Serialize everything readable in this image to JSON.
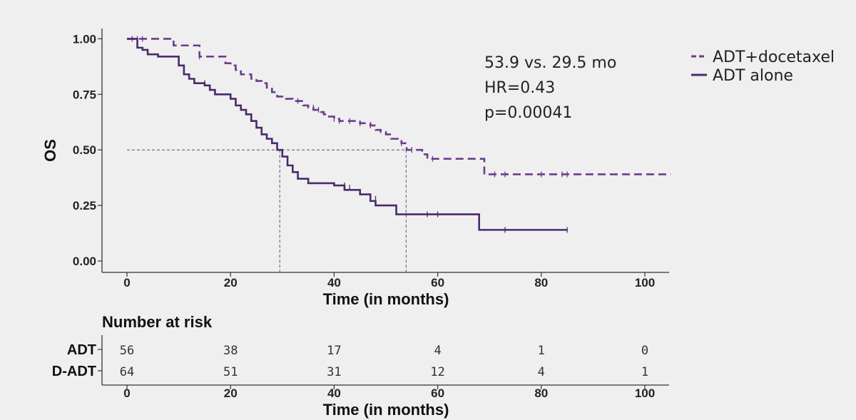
{
  "chart_data": {
    "type": "line",
    "subtype": "kaplan-meier",
    "xlabel": "Time (in months)",
    "ylabel": "OS",
    "xlim": [
      -5,
      105
    ],
    "ylim": [
      0,
      1.0
    ],
    "xticks": [
      0,
      20,
      40,
      60,
      80,
      100
    ],
    "yticks": [
      "0.00",
      "0.25",
      "0.50",
      "0.75",
      "1.00"
    ],
    "grid": false,
    "legend_position": "top-right",
    "annotations": [
      "53.9 vs. 29.5 mo",
      "HR=0.43",
      "p=0.00041"
    ],
    "reference_lines": {
      "y": 0.5,
      "x": [
        29.5,
        53.9
      ]
    },
    "series": [
      {
        "name": "ADT+docetaxel",
        "style": "dashed",
        "color": "#6a3d8f",
        "steps": [
          [
            0,
            1.0
          ],
          [
            9,
            0.97
          ],
          [
            14,
            0.92
          ],
          [
            19,
            0.89
          ],
          [
            20,
            0.88
          ],
          [
            21,
            0.86
          ],
          [
            22,
            0.84
          ],
          [
            24,
            0.82
          ],
          [
            25,
            0.81
          ],
          [
            26,
            0.8
          ],
          [
            27,
            0.78
          ],
          [
            28,
            0.76
          ],
          [
            29,
            0.74
          ],
          [
            30,
            0.73
          ],
          [
            32,
            0.72
          ],
          [
            34,
            0.7
          ],
          [
            35,
            0.69
          ],
          [
            36,
            0.68
          ],
          [
            37,
            0.67
          ],
          [
            38,
            0.66
          ],
          [
            39,
            0.65
          ],
          [
            40,
            0.64
          ],
          [
            41,
            0.63
          ],
          [
            42,
            0.63
          ],
          [
            45,
            0.62
          ],
          [
            47,
            0.61
          ],
          [
            48,
            0.59
          ],
          [
            49,
            0.58
          ],
          [
            50,
            0.57
          ],
          [
            51,
            0.55
          ],
          [
            53,
            0.53
          ],
          [
            54,
            0.5
          ],
          [
            57,
            0.48
          ],
          [
            58,
            0.46
          ],
          [
            61,
            0.46
          ],
          [
            69,
            0.39
          ],
          [
            105,
            0.39
          ]
        ],
        "censored": [
          [
            1,
            1.0
          ],
          [
            2,
            1.0
          ],
          [
            3,
            1.0
          ],
          [
            14,
            0.92
          ],
          [
            33,
            0.72
          ],
          [
            36,
            0.69
          ],
          [
            37,
            0.68
          ],
          [
            40,
            0.64
          ],
          [
            41,
            0.63
          ],
          [
            43,
            0.63
          ],
          [
            45,
            0.62
          ],
          [
            47,
            0.61
          ],
          [
            53,
            0.53
          ],
          [
            55,
            0.5
          ],
          [
            59,
            0.46
          ],
          [
            71,
            0.39
          ],
          [
            73,
            0.39
          ],
          [
            80,
            0.39
          ],
          [
            84,
            0.39
          ],
          [
            85,
            0.39
          ]
        ],
        "end_x": 105
      },
      {
        "name": "ADT alone",
        "style": "solid",
        "color": "#4b2a6b",
        "steps": [
          [
            0,
            1.0
          ],
          [
            2,
            0.96
          ],
          [
            3,
            0.95
          ],
          [
            4,
            0.93
          ],
          [
            6,
            0.92
          ],
          [
            10,
            0.88
          ],
          [
            11,
            0.84
          ],
          [
            12,
            0.82
          ],
          [
            13,
            0.8
          ],
          [
            15,
            0.79
          ],
          [
            16,
            0.77
          ],
          [
            17,
            0.75
          ],
          [
            20,
            0.73
          ],
          [
            21,
            0.7
          ],
          [
            22,
            0.68
          ],
          [
            23,
            0.66
          ],
          [
            24,
            0.63
          ],
          [
            25,
            0.6
          ],
          [
            26,
            0.57
          ],
          [
            27,
            0.55
          ],
          [
            28,
            0.53
          ],
          [
            29,
            0.5
          ],
          [
            30,
            0.47
          ],
          [
            31,
            0.43
          ],
          [
            32,
            0.4
          ],
          [
            33,
            0.37
          ],
          [
            35,
            0.35
          ],
          [
            40,
            0.34
          ],
          [
            42,
            0.32
          ],
          [
            45,
            0.3
          ],
          [
            47,
            0.27
          ],
          [
            48,
            0.25
          ],
          [
            52,
            0.21
          ],
          [
            60,
            0.21
          ],
          [
            68,
            0.14
          ],
          [
            85,
            0.14
          ]
        ],
        "censored": [
          [
            15,
            0.8
          ],
          [
            42,
            0.34
          ],
          [
            43,
            0.33
          ],
          [
            48,
            0.28
          ],
          [
            58,
            0.21
          ],
          [
            60,
            0.21
          ],
          [
            73,
            0.14
          ],
          [
            85,
            0.14
          ]
        ],
        "end_x": 85
      }
    ],
    "risk_table": {
      "title": "Number at risk",
      "timepoints": [
        0,
        20,
        40,
        60,
        80,
        100
      ],
      "rows": [
        {
          "label": "ADT",
          "values": [
            56,
            38,
            17,
            4,
            1,
            0
          ]
        },
        {
          "label": "D-ADT",
          "values": [
            64,
            51,
            31,
            12,
            4,
            1
          ]
        }
      ],
      "xlabel": "Time (in months)"
    }
  }
}
